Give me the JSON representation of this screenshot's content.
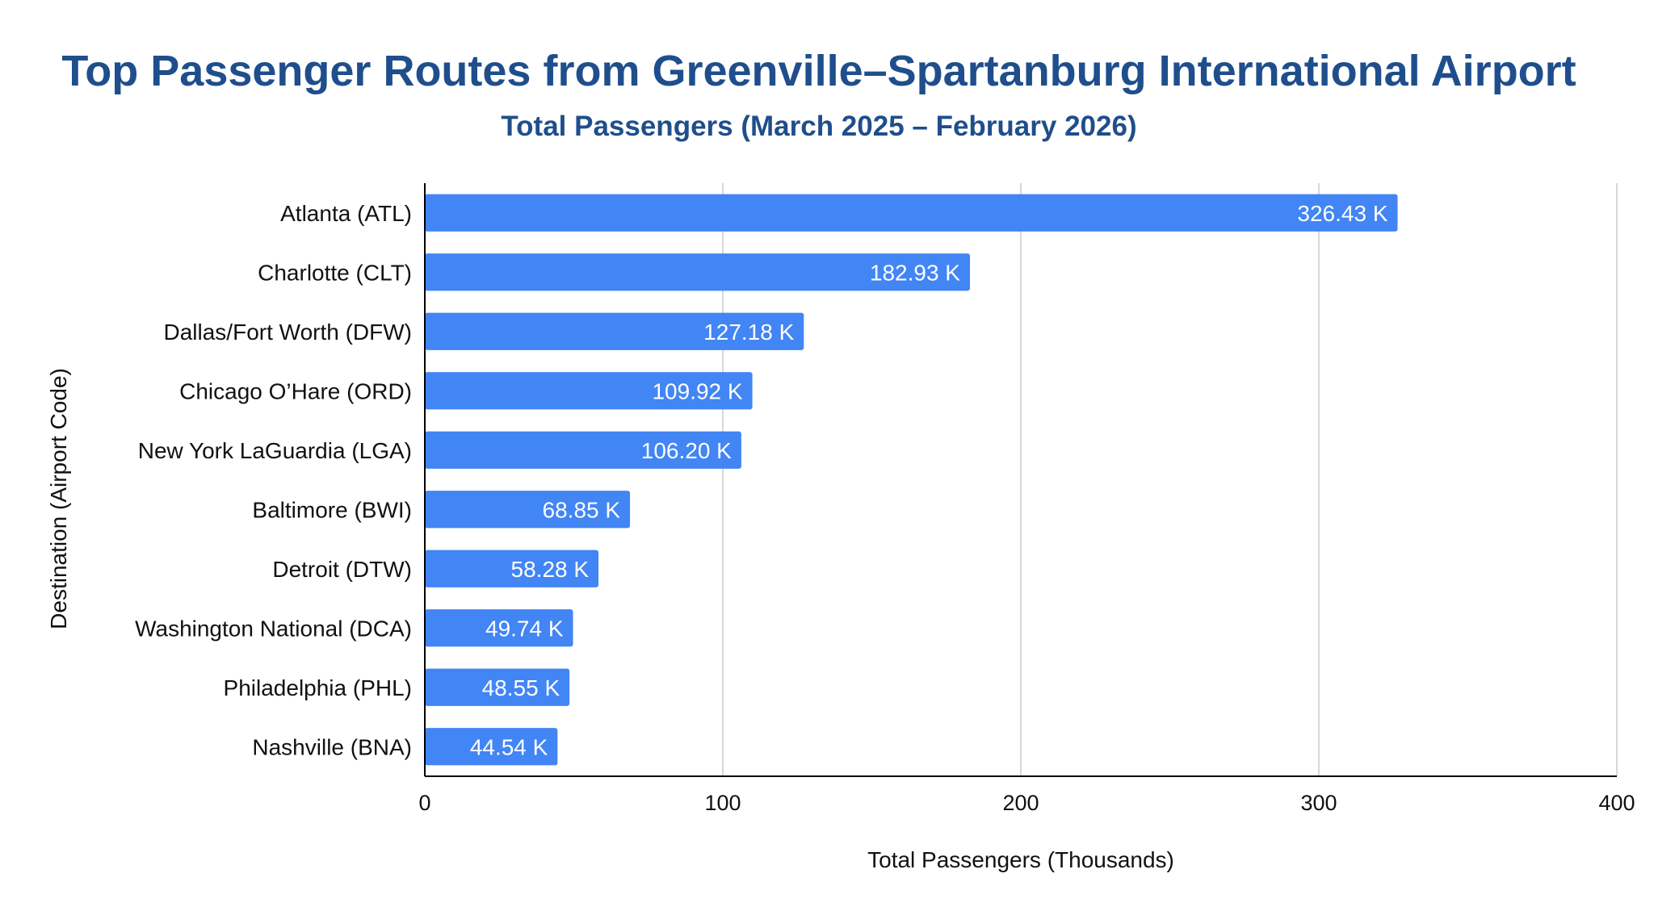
{
  "chart_data": {
    "type": "bar",
    "orientation": "horizontal",
    "title": "Top Passenger Routes from Greenville–Spartanburg International Airport",
    "subtitle": "Total Passengers (March 2025 – February 2026)",
    "xlabel": "Total Passengers (Thousands)",
    "ylabel": "Destination (Airport Code)",
    "xlim": [
      0,
      400
    ],
    "xticks": [
      0,
      100,
      200,
      300,
      400
    ],
    "grid": true,
    "legend": "none",
    "categories": [
      "Atlanta (ATL)",
      "Charlotte (CLT)",
      "Dallas/Fort Worth (DFW)",
      "Chicago O’Hare (ORD)",
      "New York LaGuardia (LGA)",
      "Baltimore (BWI)",
      "Detroit (DTW)",
      "Washington National (DCA)",
      "Philadelphia (PHL)",
      "Nashville (BNA)"
    ],
    "values": [
      326.43,
      182.93,
      127.18,
      109.92,
      106.2,
      68.85,
      58.28,
      49.74,
      48.55,
      44.54
    ],
    "data_labels": [
      "326.43 K",
      "182.93 K",
      "127.18 K",
      "109.92 K",
      "106.20 K",
      "68.85 K",
      "58.28 K",
      "49.74 K",
      "48.55 K",
      "44.54 K"
    ],
    "colors": {
      "bar": "#4285f4",
      "title": "#1f4e8c",
      "grid": "#cccccc",
      "axis": "#000000"
    }
  }
}
